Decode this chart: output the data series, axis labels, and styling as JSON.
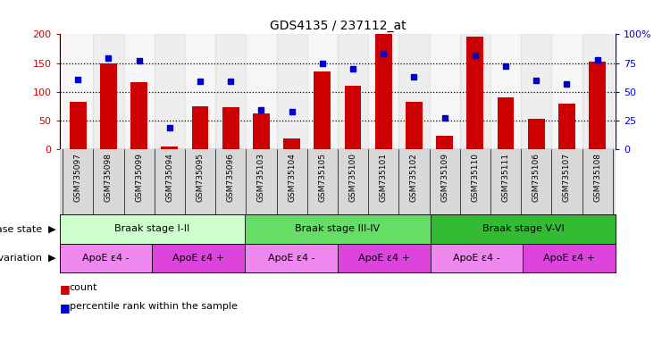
{
  "title": "GDS4135 / 237112_at",
  "samples": [
    "GSM735097",
    "GSM735098",
    "GSM735099",
    "GSM735094",
    "GSM735095",
    "GSM735096",
    "GSM735103",
    "GSM735104",
    "GSM735105",
    "GSM735100",
    "GSM735101",
    "GSM735102",
    "GSM735109",
    "GSM735110",
    "GSM735111",
    "GSM735106",
    "GSM735107",
    "GSM735108"
  ],
  "counts": [
    82,
    150,
    116,
    4,
    74,
    73,
    62,
    18,
    135,
    111,
    200,
    82,
    24,
    196,
    90,
    53,
    80,
    152
  ],
  "percentiles": [
    61,
    79,
    77,
    19,
    59,
    59,
    34,
    33,
    75,
    70,
    83,
    63,
    27,
    82,
    72,
    60,
    57,
    78
  ],
  "ylim_left": [
    0,
    200
  ],
  "ylim_right": [
    0,
    100
  ],
  "yticks_left": [
    0,
    50,
    100,
    150,
    200
  ],
  "yticks_right": [
    0,
    25,
    50,
    75,
    100
  ],
  "ytick_right_labels": [
    "0",
    "25",
    "50",
    "75",
    "100%"
  ],
  "bar_color": "#cc0000",
  "dot_color": "#0000cc",
  "disease_state_groups": [
    {
      "label": "Braak stage I-II",
      "start": 0,
      "end": 6,
      "color": "#ccffcc"
    },
    {
      "label": "Braak stage III-IV",
      "start": 6,
      "end": 12,
      "color": "#66dd66"
    },
    {
      "label": "Braak stage V-VI",
      "start": 12,
      "end": 18,
      "color": "#33bb33"
    }
  ],
  "genotype_groups": [
    {
      "label": "ApoE ε4 -",
      "start": 0,
      "end": 3,
      "color": "#ee88ee"
    },
    {
      "label": "ApoE ε4 +",
      "start": 3,
      "end": 6,
      "color": "#dd44dd"
    },
    {
      "label": "ApoE ε4 -",
      "start": 6,
      "end": 9,
      "color": "#ee88ee"
    },
    {
      "label": "ApoE ε4 +",
      "start": 9,
      "end": 12,
      "color": "#dd44dd"
    },
    {
      "label": "ApoE ε4 -",
      "start": 12,
      "end": 15,
      "color": "#ee88ee"
    },
    {
      "label": "ApoE ε4 +",
      "start": 15,
      "end": 18,
      "color": "#dd44dd"
    }
  ],
  "left_label_color": "#cc0000",
  "right_label_color": "#0000cc",
  "legend_count_label": "count",
  "legend_pct_label": "percentile rank within the sample",
  "xticklabel_bg": "#d8d8d8"
}
